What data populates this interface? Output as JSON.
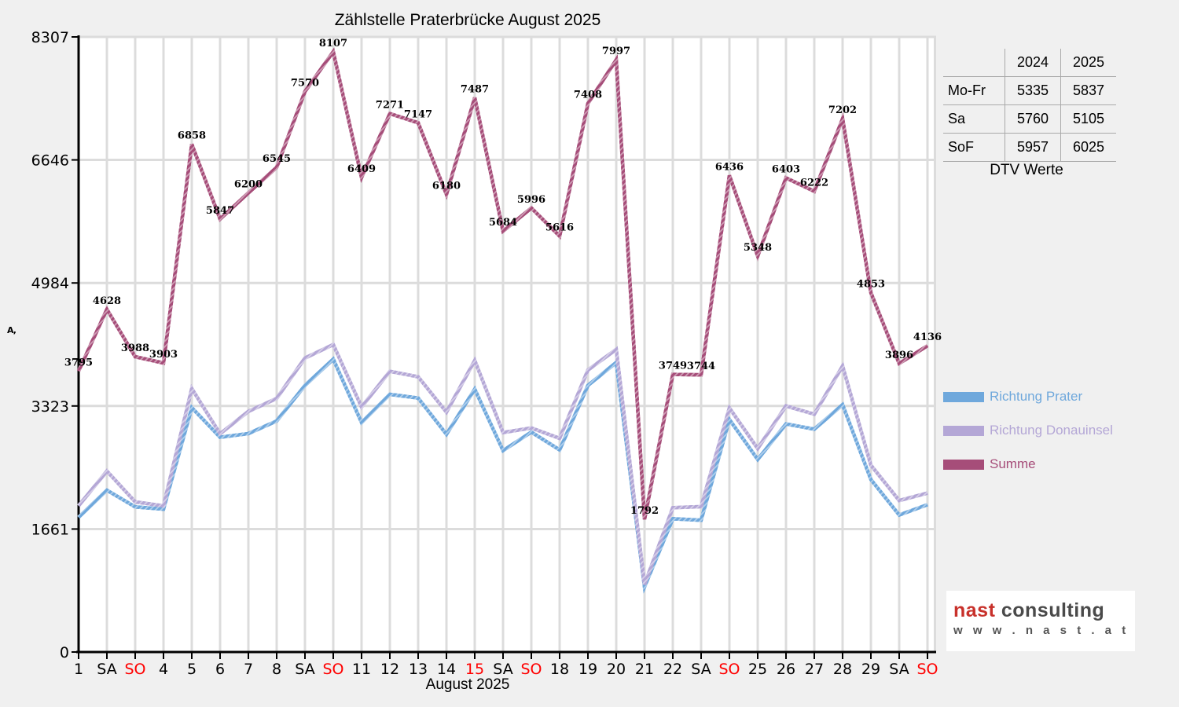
{
  "title": "Zählstelle Praterbrücke August 2025",
  "chart_data": {
    "type": "line",
    "x_labels": [
      "1",
      "SA",
      "SO",
      "4",
      "5",
      "6",
      "7",
      "8",
      "SA",
      "SO",
      "11",
      "12",
      "13",
      "14",
      "15",
      "SA",
      "SO",
      "18",
      "19",
      "20",
      "21",
      "22",
      "SA",
      "SO",
      "25",
      "26",
      "27",
      "28",
      "29",
      "SA",
      "SO"
    ],
    "red_label_indices": [
      2,
      9,
      14,
      16,
      23,
      30
    ],
    "yticks": [
      0,
      1661,
      3323,
      4984,
      6646,
      8307
    ],
    "ylim": [
      0,
      8307
    ],
    "xlabel": "August 2025",
    "ylabel_display": "A,",
    "grid": true,
    "legend_position": "right",
    "series": [
      {
        "name": "Richtung Prater",
        "color": "#6fa8dc",
        "values": [
          1820,
          2185,
          1960,
          1930,
          3300,
          2900,
          2950,
          3120,
          3600,
          3955,
          3100,
          3480,
          3430,
          2940,
          3550,
          2720,
          2970,
          2730,
          3600,
          3910,
          880,
          1800,
          1780,
          3140,
          2600,
          3080,
          3010,
          3340,
          2330,
          1850,
          1990
        ]
      },
      {
        "name": "Richtung Donauinsel",
        "color": "#b4a7d6",
        "values": [
          1975,
          2443,
          2028,
          1973,
          3558,
          2947,
          3250,
          3425,
          3970,
          4152,
          3309,
          3791,
          3717,
          3240,
          3937,
          2964,
          3026,
          2886,
          3808,
          4087,
          912,
          1949,
          1964,
          3296,
          2748,
          3323,
          3212,
          3862,
          2523,
          2046,
          2146
        ]
      },
      {
        "name": "Summe",
        "color": "#a64d79",
        "show_labels": true,
        "values": [
          3795,
          4628,
          3988,
          3903,
          6858,
          5847,
          6200,
          6545,
          7570,
          8107,
          6409,
          7271,
          7147,
          6180,
          7487,
          5684,
          5996,
          5616,
          7408,
          7997,
          1792,
          3749,
          3744,
          6436,
          5348,
          6403,
          6222,
          7202,
          4853,
          3896,
          4136
        ]
      }
    ]
  },
  "table": {
    "col_headers": [
      "2024",
      "2025"
    ],
    "rows": [
      {
        "label": "Mo-Fr",
        "y2024": "5335",
        "y2025": "5837"
      },
      {
        "label": "Sa",
        "y2024": "5760",
        "y2025": "5105"
      },
      {
        "label": "SoF",
        "y2024": "5957",
        "y2025": "6025"
      }
    ],
    "caption": "DTV Werte"
  },
  "logo": {
    "brand_red": "nast",
    "brand_gray": "consulting",
    "url": "w w w . n a s t . a t"
  },
  "colors": {
    "background": "#f0f0f0",
    "plot_background": "#ffffff",
    "grid": "#dcdcdc",
    "axis": "#000000",
    "holiday_red": "#ff0000",
    "logo_red": "#c8312b",
    "logo_gray": "#4a4a4a",
    "logo_url_gray": "#555555"
  }
}
